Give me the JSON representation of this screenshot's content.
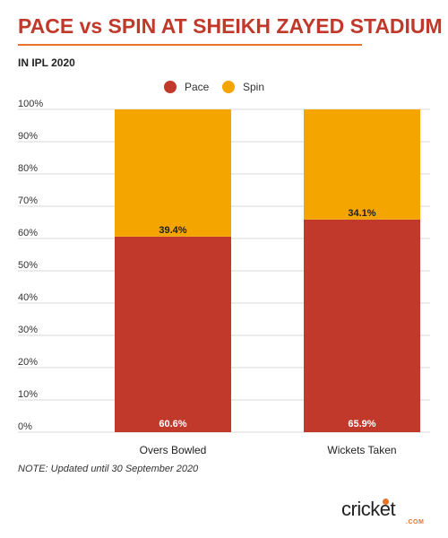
{
  "header": {
    "title": "PACE vs SPIN AT SHEIKH ZAYED STADIUM",
    "subtitle": "IN IPL 2020"
  },
  "footer": {
    "note": "NOTE: Updated until 30 September 2020",
    "logo_text": "cricket",
    "logo_sub": ".COM"
  },
  "colors": {
    "title": "#c0392b",
    "rule": "#e8742c",
    "pace": "#c0392b",
    "spin": "#f5a500",
    "grid": "#d9d9d9",
    "logo_accent": "#e8742c"
  },
  "chart_data": {
    "type": "bar",
    "stacked": true,
    "percent": true,
    "categories": [
      "Overs Bowled",
      "Wickets Taken"
    ],
    "series": [
      {
        "name": "Pace",
        "values": [
          60.6,
          65.9
        ],
        "labels": [
          "60.6%",
          "65.9%"
        ]
      },
      {
        "name": "Spin",
        "values": [
          39.4,
          34.1
        ],
        "labels": [
          "39.4%",
          "34.1%"
        ]
      }
    ],
    "ylim": [
      0,
      100
    ],
    "yticks": [
      "0%",
      "10%",
      "20%",
      "30%",
      "40%",
      "50%",
      "60%",
      "70%",
      "80%",
      "90%",
      "100%"
    ],
    "grid": true,
    "legend": "top-center"
  }
}
